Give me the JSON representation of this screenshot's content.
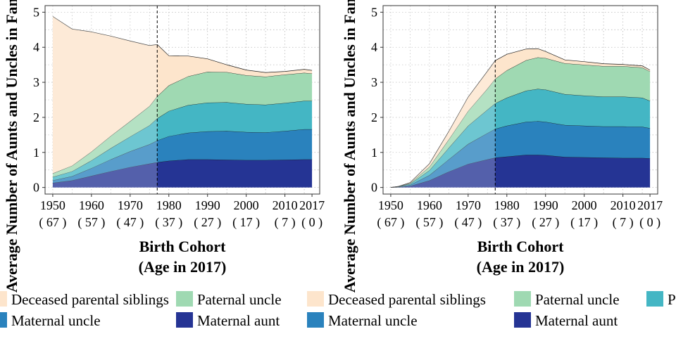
{
  "colors": {
    "Deceased parental siblings": "#fde5cc",
    "Paternal uncle": "#9fd9b2",
    "Paternal aunt": "#44b6c4",
    "Maternal uncle": "#2a82bd",
    "Maternal aunt": "#253494"
  },
  "chart_data": [
    {
      "type": "area",
      "stacked": true,
      "x": [
        1950,
        1955,
        1960,
        1965,
        1970,
        1975,
        1977,
        1980,
        1985,
        1990,
        1995,
        2000,
        2005,
        2010,
        2015,
        2017
      ],
      "x_ticks": [
        1950,
        1960,
        1970,
        1980,
        1990,
        2000,
        2010,
        2017
      ],
      "x_tick_age_labels": [
        "( 67 )",
        "( 57 )",
        "( 47 )",
        "( 37 )",
        "( 27 )",
        "( 17 )",
        "( 7 )",
        "( 0 )"
      ],
      "xlim": [
        1950,
        2017
      ],
      "ylim": [
        0,
        5
      ],
      "y_ticks": [
        "0",
        "1",
        "2",
        "3",
        "4",
        "5"
      ],
      "xlabel": "Birth Cohort",
      "xlabel_line2": "(Age in 2017)",
      "ylabel": "Average Number of Aunts and Uncles in Family",
      "vline_x": 1977,
      "shaded_before_x": 1977,
      "grid": true,
      "series": [
        {
          "name": "Maternal aunt",
          "values": [
            0.13,
            0.2,
            0.33,
            0.46,
            0.58,
            0.68,
            0.72,
            0.76,
            0.8,
            0.8,
            0.79,
            0.78,
            0.78,
            0.79,
            0.8,
            0.8
          ]
        },
        {
          "name": "Maternal uncle",
          "values": [
            0.07,
            0.12,
            0.22,
            0.34,
            0.45,
            0.55,
            0.62,
            0.7,
            0.76,
            0.8,
            0.82,
            0.8,
            0.79,
            0.82,
            0.86,
            0.86
          ]
        },
        {
          "name": "Paternal aunt",
          "values": [
            0.1,
            0.14,
            0.22,
            0.32,
            0.42,
            0.54,
            0.63,
            0.72,
            0.79,
            0.82,
            0.82,
            0.8,
            0.79,
            0.8,
            0.81,
            0.81
          ]
        },
        {
          "name": "Paternal uncle",
          "values": [
            0.1,
            0.16,
            0.25,
            0.35,
            0.44,
            0.55,
            0.63,
            0.73,
            0.82,
            0.88,
            0.86,
            0.82,
            0.8,
            0.81,
            0.8,
            0.78
          ]
        },
        {
          "name": "Deceased parental siblings",
          "values": [
            4.48,
            3.9,
            3.42,
            2.85,
            2.29,
            1.73,
            1.48,
            0.85,
            0.58,
            0.37,
            0.21,
            0.15,
            0.12,
            0.09,
            0.1,
            0.09
          ]
        }
      ]
    },
    {
      "type": "area",
      "stacked": true,
      "x": [
        1950,
        1952,
        1955,
        1960,
        1965,
        1970,
        1975,
        1977,
        1980,
        1985,
        1988,
        1990,
        1995,
        2000,
        2005,
        2010,
        2015,
        2017
      ],
      "x_ticks": [
        1950,
        1960,
        1970,
        1980,
        1990,
        2000,
        2010,
        2017
      ],
      "x_tick_age_labels": [
        "( 67 )",
        "( 57 )",
        "( 47 )",
        "( 37 )",
        "( 27 )",
        "( 17 )",
        "( 7 )",
        "( 0 )"
      ],
      "xlim": [
        1950,
        2017
      ],
      "ylim": [
        0,
        5
      ],
      "y_ticks": [
        "0",
        "1",
        "2",
        "3",
        "4",
        "5"
      ],
      "xlabel": "Birth Cohort",
      "xlabel_line2": "(Age in 2017)",
      "ylabel": "Average Number of Aunts and Uncles in Family",
      "vline_x": 1977,
      "shaded_before_x": 1977,
      "grid": true,
      "series": [
        {
          "name": "Maternal aunt",
          "values": [
            0.0,
            0.01,
            0.04,
            0.2,
            0.45,
            0.67,
            0.8,
            0.85,
            0.88,
            0.93,
            0.93,
            0.92,
            0.87,
            0.86,
            0.85,
            0.84,
            0.84,
            0.83
          ]
        },
        {
          "name": "Maternal uncle",
          "values": [
            0.0,
            0.01,
            0.03,
            0.15,
            0.35,
            0.57,
            0.75,
            0.82,
            0.88,
            0.94,
            0.96,
            0.95,
            0.91,
            0.9,
            0.89,
            0.9,
            0.89,
            0.86
          ]
        },
        {
          "name": "Paternal aunt",
          "values": [
            0.0,
            0.01,
            0.03,
            0.14,
            0.33,
            0.52,
            0.67,
            0.73,
            0.8,
            0.89,
            0.92,
            0.92,
            0.88,
            0.86,
            0.85,
            0.85,
            0.83,
            0.78
          ]
        },
        {
          "name": "Paternal uncle",
          "values": [
            0.0,
            0.0,
            0.02,
            0.1,
            0.24,
            0.42,
            0.6,
            0.7,
            0.78,
            0.87,
            0.9,
            0.9,
            0.88,
            0.88,
            0.87,
            0.87,
            0.86,
            0.84
          ]
        },
        {
          "name": "Deceased parental siblings",
          "values": [
            0.0,
            0.0,
            0.02,
            0.09,
            0.23,
            0.4,
            0.5,
            0.52,
            0.46,
            0.32,
            0.25,
            0.19,
            0.1,
            0.09,
            0.07,
            0.05,
            0.05,
            0.04
          ]
        }
      ]
    }
  ],
  "legend_rows": [
    [
      {
        "label": "Deceased parental siblings",
        "series": "Deceased parental siblings",
        "x": -14
      },
      {
        "label": "Paternal uncle",
        "series": "Paternal uncle",
        "x": 250
      },
      {
        "label": "Deceased parental siblings",
        "series": "Deceased parental siblings",
        "x": 436
      },
      {
        "label": "Paternal uncle",
        "series": "Paternal uncle",
        "x": 730
      },
      {
        "label": "Pa",
        "series": "Paternal aunt",
        "x": 918
      }
    ],
    [
      {
        "label": "Maternal uncle",
        "series": "Maternal uncle",
        "x": -14
      },
      {
        "label": "Maternal aunt",
        "series": "Maternal aunt",
        "x": 250
      },
      {
        "label": "Maternal uncle",
        "series": "Maternal uncle",
        "x": 436
      },
      {
        "label": "Maternal aunt",
        "series": "Maternal aunt",
        "x": 730
      }
    ]
  ]
}
